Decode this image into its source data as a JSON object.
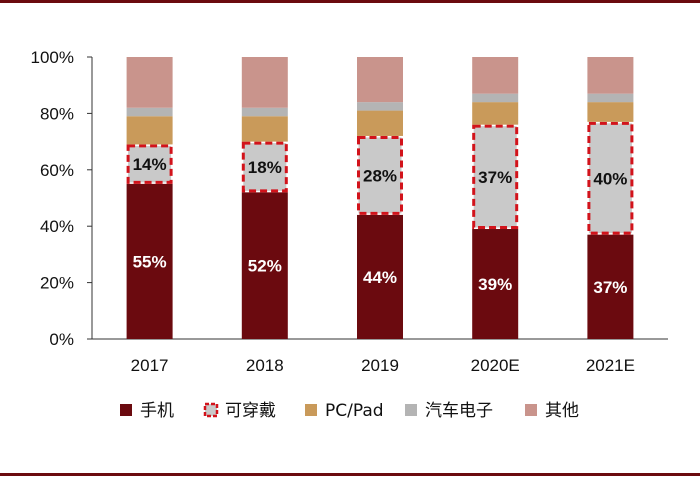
{
  "chart_data": {
    "type": "bar",
    "stacked": true,
    "categories": [
      "2017",
      "2018",
      "2019",
      "2020E",
      "2021E"
    ],
    "ylim": [
      0,
      100
    ],
    "yticks": [
      "0%",
      "20%",
      "40%",
      "60%",
      "80%",
      "100%"
    ],
    "grid": false,
    "legend_position": "bottom",
    "series": [
      {
        "name": "手机",
        "values": [
          55,
          52,
          44,
          39,
          37
        ],
        "labels": [
          "55%",
          "52%",
          "44%",
          "39%",
          "37%"
        ],
        "color": "#6b0a0f",
        "label_color": "#ffffff"
      },
      {
        "name": "可穿戴",
        "values": [
          14,
          18,
          28,
          37,
          40
        ],
        "labels": [
          "14%",
          "18%",
          "28%",
          "37%",
          "40%"
        ],
        "color": "#c9c9c9",
        "border_color": "#d2131b",
        "dashed": true,
        "label_color": "#111111"
      },
      {
        "name": "PC/Pad",
        "values": [
          10,
          9,
          9,
          8,
          7
        ],
        "color": "#c99a5a"
      },
      {
        "name": "汽车电子",
        "values": [
          3,
          3,
          3,
          3,
          3
        ],
        "color": "#b4b4b4"
      },
      {
        "name": "其他",
        "values": [
          18,
          18,
          16,
          13,
          13
        ],
        "color": "#c9948c"
      }
    ]
  }
}
